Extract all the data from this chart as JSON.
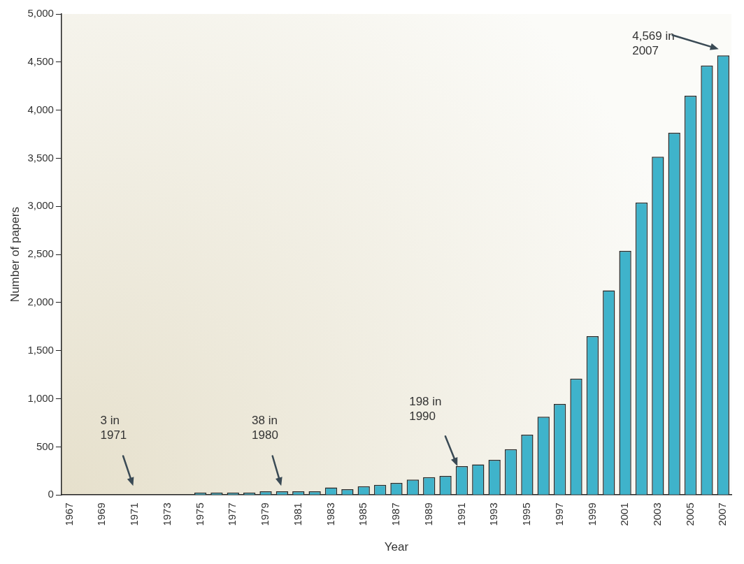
{
  "chart_data": {
    "type": "bar",
    "xlabel": "Year",
    "ylabel": "Number of papers",
    "categories": [
      "1967",
      null,
      "1969",
      null,
      "1971",
      null,
      "1973",
      null,
      "1975",
      null,
      "1977",
      null,
      "1979",
      null,
      "1981",
      null,
      "1983",
      null,
      "1985",
      null,
      "1987",
      null,
      "1989",
      null,
      "1991",
      null,
      "1993",
      null,
      "1995",
      null,
      "1997",
      null,
      "1999",
      null,
      "2001",
      null,
      "2003",
      null,
      "2005",
      null,
      "2007"
    ],
    "values": [
      0,
      0,
      0,
      2,
      3,
      3,
      3,
      3,
      25,
      25,
      25,
      25,
      38,
      38,
      38,
      38,
      78,
      60,
      90,
      105,
      125,
      160,
      185,
      198,
      300,
      318,
      365,
      475,
      626,
      813,
      947,
      1209,
      1650,
      2127,
      2538,
      3040,
      3517,
      3765,
      4150,
      4464,
      4569
    ],
    "color": "#3fb3cb",
    "ylim": [
      0,
      5000
    ],
    "yticks": [
      0,
      500,
      {
        "value": 1000,
        "label": "1,000"
      },
      {
        "value": 1500,
        "label": "1,500"
      },
      {
        "value": 2000,
        "label": "2,000"
      },
      {
        "value": 2500,
        "label": "2,500"
      },
      {
        "value": 3000,
        "label": "3,000"
      },
      {
        "value": 3500,
        "label": "3,500"
      },
      {
        "value": 4000,
        "label": "4,000"
      },
      {
        "value": 4500,
        "label": "4,500"
      },
      {
        "value": 5000,
        "label": "5,000"
      }
    ],
    "grid": false,
    "legend": false,
    "annotations": [
      "3 in\n1971",
      "38 in\n1980",
      "198 in\n1990",
      "4,569 in\n2007"
    ]
  }
}
